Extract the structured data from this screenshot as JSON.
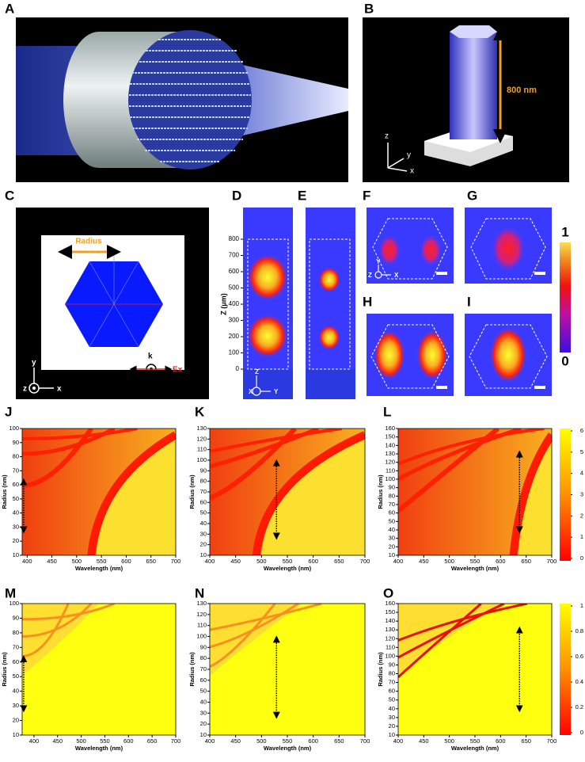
{
  "labels": [
    "A",
    "B",
    "C",
    "D",
    "E",
    "F",
    "G",
    "H",
    "I",
    "J",
    "K",
    "L",
    "M",
    "N",
    "O"
  ],
  "B": {
    "height_label": "800 nm",
    "axes": [
      "z",
      "y",
      "x"
    ]
  },
  "C": {
    "radius_label": "Radius",
    "k_label": "k",
    "field_label": "Ex",
    "axes": [
      "y",
      "z",
      "x"
    ]
  },
  "D": {
    "ylabel": "Z (μm)",
    "ylim": [
      -185,
      995
    ],
    "yticks": [
      0,
      100,
      200,
      300,
      400,
      500,
      600,
      700,
      800
    ],
    "axes": [
      "Z",
      "X",
      "Y"
    ]
  },
  "F": {
    "axes": [
      "Y",
      "Z",
      "X"
    ]
  },
  "field_colorbar": {
    "ylim": [
      0,
      1
    ],
    "yticks": [
      0,
      1
    ]
  },
  "maps": [
    {
      "xlabel": "Wavelength (nm)",
      "ylabel": "Radius (nm)",
      "xlim": [
        390,
        700
      ],
      "xticks": [
        400,
        450,
        500,
        550,
        600,
        650,
        700
      ],
      "ylim": [
        10,
        100
      ],
      "yticks": [
        10,
        20,
        30,
        40,
        50,
        60,
        70,
        80,
        90,
        100
      ]
    },
    {
      "xlabel": "Wavelength (nm)",
      "ylabel": "Radius (nm)",
      "xlim": [
        400,
        700
      ],
      "xticks": [
        400,
        450,
        500,
        550,
        600,
        650,
        700
      ],
      "ylim": [
        10,
        130
      ],
      "yticks": [
        10,
        20,
        30,
        40,
        50,
        60,
        70,
        80,
        90,
        100,
        110,
        120,
        130
      ]
    },
    {
      "xlabel": "Wavelength (nm)",
      "ylabel": "Radius (nm)",
      "xlim": [
        400,
        700
      ],
      "xticks": [
        400,
        450,
        500,
        550,
        600,
        650,
        700
      ],
      "ylim": [
        10,
        160
      ],
      "yticks": [
        10,
        20,
        30,
        40,
        50,
        60,
        70,
        80,
        90,
        100,
        110,
        120,
        130,
        140,
        150,
        160
      ]
    },
    {
      "xlabel": "Wavelength (nm)",
      "ylabel": "Radius (nm)",
      "xlim": [
        375,
        700
      ],
      "xticks": [
        400,
        450,
        500,
        550,
        600,
        650,
        700
      ],
      "ylim": [
        10,
        100
      ],
      "yticks": [
        10,
        20,
        30,
        40,
        50,
        60,
        70,
        80,
        90,
        100
      ]
    },
    {
      "xlabel": "Wavelength (nm)",
      "ylabel": "Radius (nm)",
      "xlim": [
        400,
        700
      ],
      "xticks": [
        400,
        450,
        500,
        550,
        600,
        650,
        700
      ],
      "ylim": [
        10,
        130
      ],
      "yticks": [
        10,
        20,
        30,
        40,
        50,
        60,
        70,
        80,
        90,
        100,
        110,
        120,
        130
      ]
    },
    {
      "xlabel": "Wavelength (nm)",
      "ylabel": "Radius (nm)",
      "xlim": [
        400,
        700
      ],
      "xticks": [
        400,
        450,
        500,
        550,
        600,
        650,
        700
      ],
      "ylim": [
        10,
        160
      ],
      "yticks": [
        10,
        20,
        30,
        40,
        50,
        60,
        70,
        80,
        90,
        100,
        110,
        120,
        130,
        140,
        150,
        160
      ]
    }
  ],
  "map_colorbars": [
    {
      "ylim": [
        0,
        6
      ],
      "yticks": [
        0,
        1,
        2,
        3,
        4,
        5,
        6
      ]
    },
    {
      "ylim": [
        0,
        1
      ],
      "yticks": [
        0,
        0.2,
        0.4,
        0.6,
        0.8,
        1
      ]
    }
  ]
}
